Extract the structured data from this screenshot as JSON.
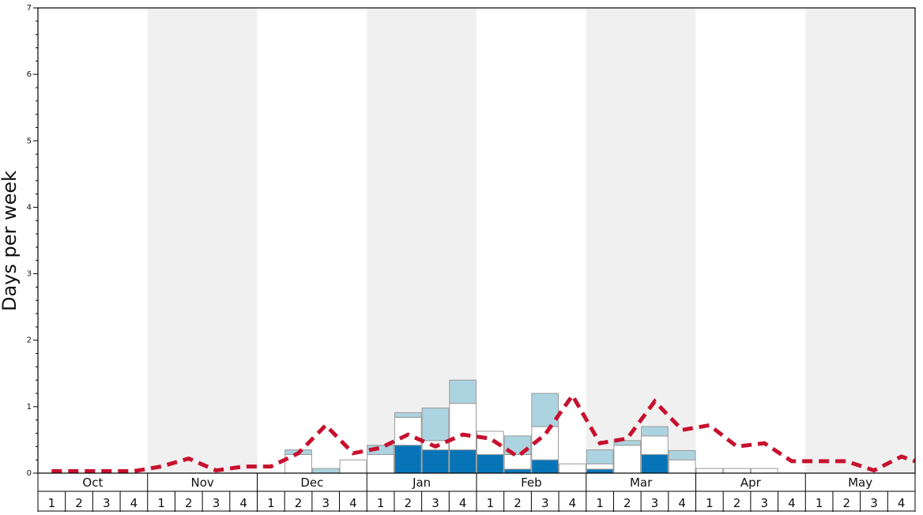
{
  "chart_data": {
    "type": "bar",
    "ylabel": "Days per week",
    "ylim": [
      0,
      7
    ],
    "y_ticks": [
      "0",
      "1",
      "2",
      "3",
      "4",
      "5",
      "6",
      "7"
    ],
    "months": [
      "Oct",
      "Nov",
      "Dec",
      "Jan",
      "Feb",
      "Mar",
      "Apr",
      "May"
    ],
    "week_labels": [
      "1",
      "2",
      "3",
      "4"
    ],
    "colors": {
      "band_shade": "#f0f0f0",
      "deep_blue": "#0874b8",
      "white_segment": "#ffffff",
      "light_blue": "#acd3e0",
      "segment_border": "#9a9a9a",
      "dashed_line": "#c8102e",
      "axis": "#000000"
    },
    "stacked_series": [
      {
        "color_key": "deep_blue",
        "values": [
          0,
          0,
          0,
          0,
          0,
          0,
          0,
          0,
          0,
          0,
          0,
          0,
          0,
          0.42,
          0.35,
          0.35,
          0.28,
          0.06,
          0.2,
          0,
          0.06,
          0,
          0.28,
          0,
          0,
          0,
          0,
          0,
          0,
          0,
          0,
          0
        ]
      },
      {
        "color_key": "white_segment",
        "values": [
          0,
          0,
          0,
          0,
          0,
          0,
          0,
          0,
          0,
          0.28,
          0,
          0.2,
          0.28,
          0.42,
          0.14,
          0.7,
          0.35,
          0.22,
          0.5,
          0.14,
          0.08,
          0.42,
          0.28,
          0.2,
          0.07,
          0.07,
          0.07,
          0,
          0,
          0,
          0,
          0
        ]
      },
      {
        "color_key": "light_blue",
        "values": [
          0,
          0,
          0,
          0,
          0,
          0,
          0,
          0,
          0,
          0.07,
          0.07,
          0,
          0.14,
          0.07,
          0.49,
          0.35,
          0,
          0.28,
          0.5,
          0,
          0.21,
          0.07,
          0.14,
          0.14,
          0,
          0,
          0,
          0,
          0,
          0,
          0,
          0
        ]
      }
    ],
    "average_line": {
      "style": "dashed",
      "color_key": "dashed_line",
      "values": [
        0.03,
        0.03,
        0.03,
        0.03,
        0.1,
        0.22,
        0.04,
        0.1,
        0.1,
        0.3,
        0.72,
        0.3,
        0.38,
        0.58,
        0.4,
        0.58,
        0.52,
        0.25,
        0.58,
        1.17,
        0.45,
        0.52,
        1.08,
        0.65,
        0.72,
        0.4,
        0.45,
        0.18,
        0.18,
        0.18,
        0.04,
        0.25,
        0.18
      ]
    }
  }
}
